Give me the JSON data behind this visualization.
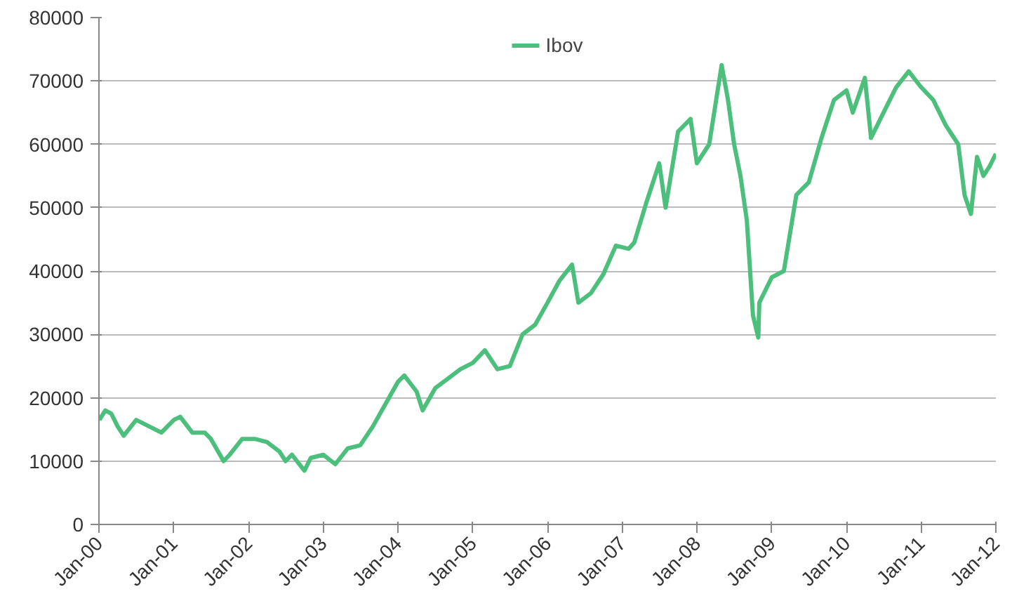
{
  "chart_data": {
    "type": "line",
    "x": [
      "2000-01-03",
      "2000-02",
      "2000-03",
      "2000-04",
      "2000-05",
      "2000-07",
      "2000-09",
      "2000-11",
      "2001-01",
      "2001-02",
      "2001-04",
      "2001-06",
      "2001-07",
      "2001-09",
      "2001-10",
      "2001-12",
      "2002-02",
      "2002-04",
      "2002-06",
      "2002-07",
      "2002-08",
      "2002-10",
      "2002-11",
      "2003-01",
      "2003-03",
      "2003-05",
      "2003-07",
      "2003-09",
      "2003-11",
      "2004-01",
      "2004-02",
      "2004-04",
      "2004-05",
      "2004-07",
      "2004-09",
      "2004-11",
      "2005-01",
      "2005-03",
      "2005-05",
      "2005-07",
      "2005-09",
      "2005-11",
      "2006-01",
      "2006-03",
      "2006-05",
      "2006-06",
      "2006-08",
      "2006-10",
      "2006-12",
      "2007-02",
      "2007-03",
      "2007-05",
      "2007-07",
      "2007-08",
      "2007-10",
      "2007-12",
      "2008-01",
      "2008-03",
      "2008-05",
      "2008-06",
      "2008-07",
      "2008-08",
      "2008-09",
      "2008-10",
      "2008-10-27",
      "2008-11",
      "2009-01",
      "2009-03",
      "2009-05",
      "2009-07",
      "2009-09",
      "2009-11",
      "2010-01",
      "2010-02",
      "2010-04",
      "2010-05",
      "2010-07",
      "2010-09",
      "2010-11",
      "2011-01",
      "2011-03",
      "2011-05",
      "2011-07",
      "2011-08",
      "2011-09",
      "2011-10",
      "2011-11",
      "2011-12",
      "2012-01"
    ],
    "series": [
      {
        "name": "Ibov",
        "color": "#4cbf7c",
        "values": [
          16500,
          18000,
          17500,
          15500,
          14000,
          16500,
          15500,
          14500,
          16500,
          17000,
          14500,
          14500,
          13500,
          10000,
          11000,
          13500,
          13500,
          13000,
          11500,
          10000,
          11000,
          8500,
          10500,
          11000,
          9500,
          12000,
          12500,
          15500,
          19000,
          22500,
          23500,
          21000,
          18000,
          21500,
          23000,
          24500,
          25500,
          27500,
          24500,
          25000,
          30000,
          31500,
          35000,
          38500,
          41000,
          35000,
          36500,
          39500,
          44000,
          43500,
          44500,
          51000,
          57000,
          50000,
          62000,
          64000,
          57000,
          60000,
          72500,
          67000,
          60000,
          55000,
          48000,
          33000,
          29500,
          35000,
          39000,
          40000,
          52000,
          54000,
          61000,
          67000,
          68500,
          65000,
          70500,
          61000,
          65000,
          69000,
          71500,
          69000,
          67000,
          63000,
          60000,
          52000,
          49000,
          58000,
          55000,
          56500,
          58500
        ]
      }
    ],
    "xlim": [
      "2000-01",
      "2012-01"
    ],
    "xticks": [
      {
        "value": "2000-01",
        "label": "Jan-00"
      },
      {
        "value": "2001-01",
        "label": "Jan-01"
      },
      {
        "value": "2002-01",
        "label": "Jan-02"
      },
      {
        "value": "2003-01",
        "label": "Jan-03"
      },
      {
        "value": "2004-01",
        "label": "Jan-04"
      },
      {
        "value": "2005-01",
        "label": "Jan-05"
      },
      {
        "value": "2006-01",
        "label": "Jan-06"
      },
      {
        "value": "2007-01",
        "label": "Jan-07"
      },
      {
        "value": "2008-01",
        "label": "Jan-08"
      },
      {
        "value": "2009-01",
        "label": "Jan-09"
      },
      {
        "value": "2010-01",
        "label": "Jan-10"
      },
      {
        "value": "2011-01",
        "label": "Jan-11"
      },
      {
        "value": "2012-01",
        "label": "Jan-12"
      }
    ],
    "ylim": [
      0,
      80000
    ],
    "yticks": [
      0,
      10000,
      20000,
      30000,
      40000,
      50000,
      60000,
      70000,
      80000
    ],
    "grid": "y",
    "legend": "top",
    "marker": "none",
    "line_style": "solid"
  }
}
